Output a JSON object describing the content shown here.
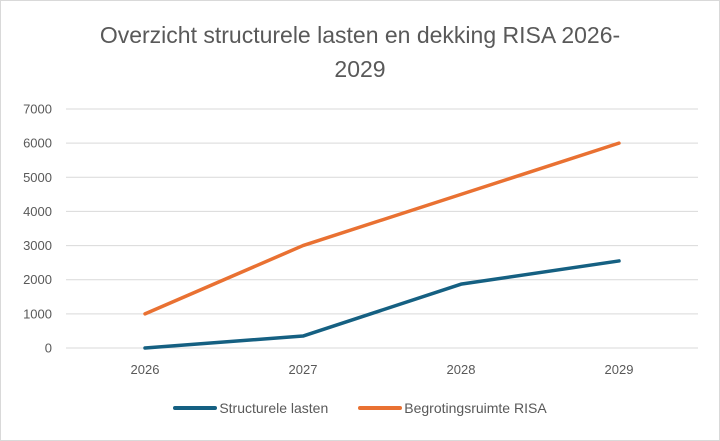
{
  "chart_data": {
    "type": "line",
    "title_lines": [
      "Overzicht structurele lasten en dekking RISA 2026-",
      "2029"
    ],
    "categories": [
      "2026",
      "2027",
      "2028",
      "2029"
    ],
    "series": [
      {
        "name": "Structurele lasten",
        "values": [
          0,
          350,
          1870,
          2550
        ],
        "color": "#156082"
      },
      {
        "name": "Begrotingsruimte RISA",
        "values": [
          1000,
          3000,
          4500,
          6000
        ],
        "color": "#E97132"
      }
    ],
    "yticks": [
      "0",
      "1000",
      "2000",
      "3000",
      "4000",
      "5000",
      "6000",
      "7000"
    ],
    "ylim": [
      0,
      7000
    ],
    "grid": true,
    "legend_position": "bottom",
    "xlabel": "",
    "ylabel": ""
  }
}
